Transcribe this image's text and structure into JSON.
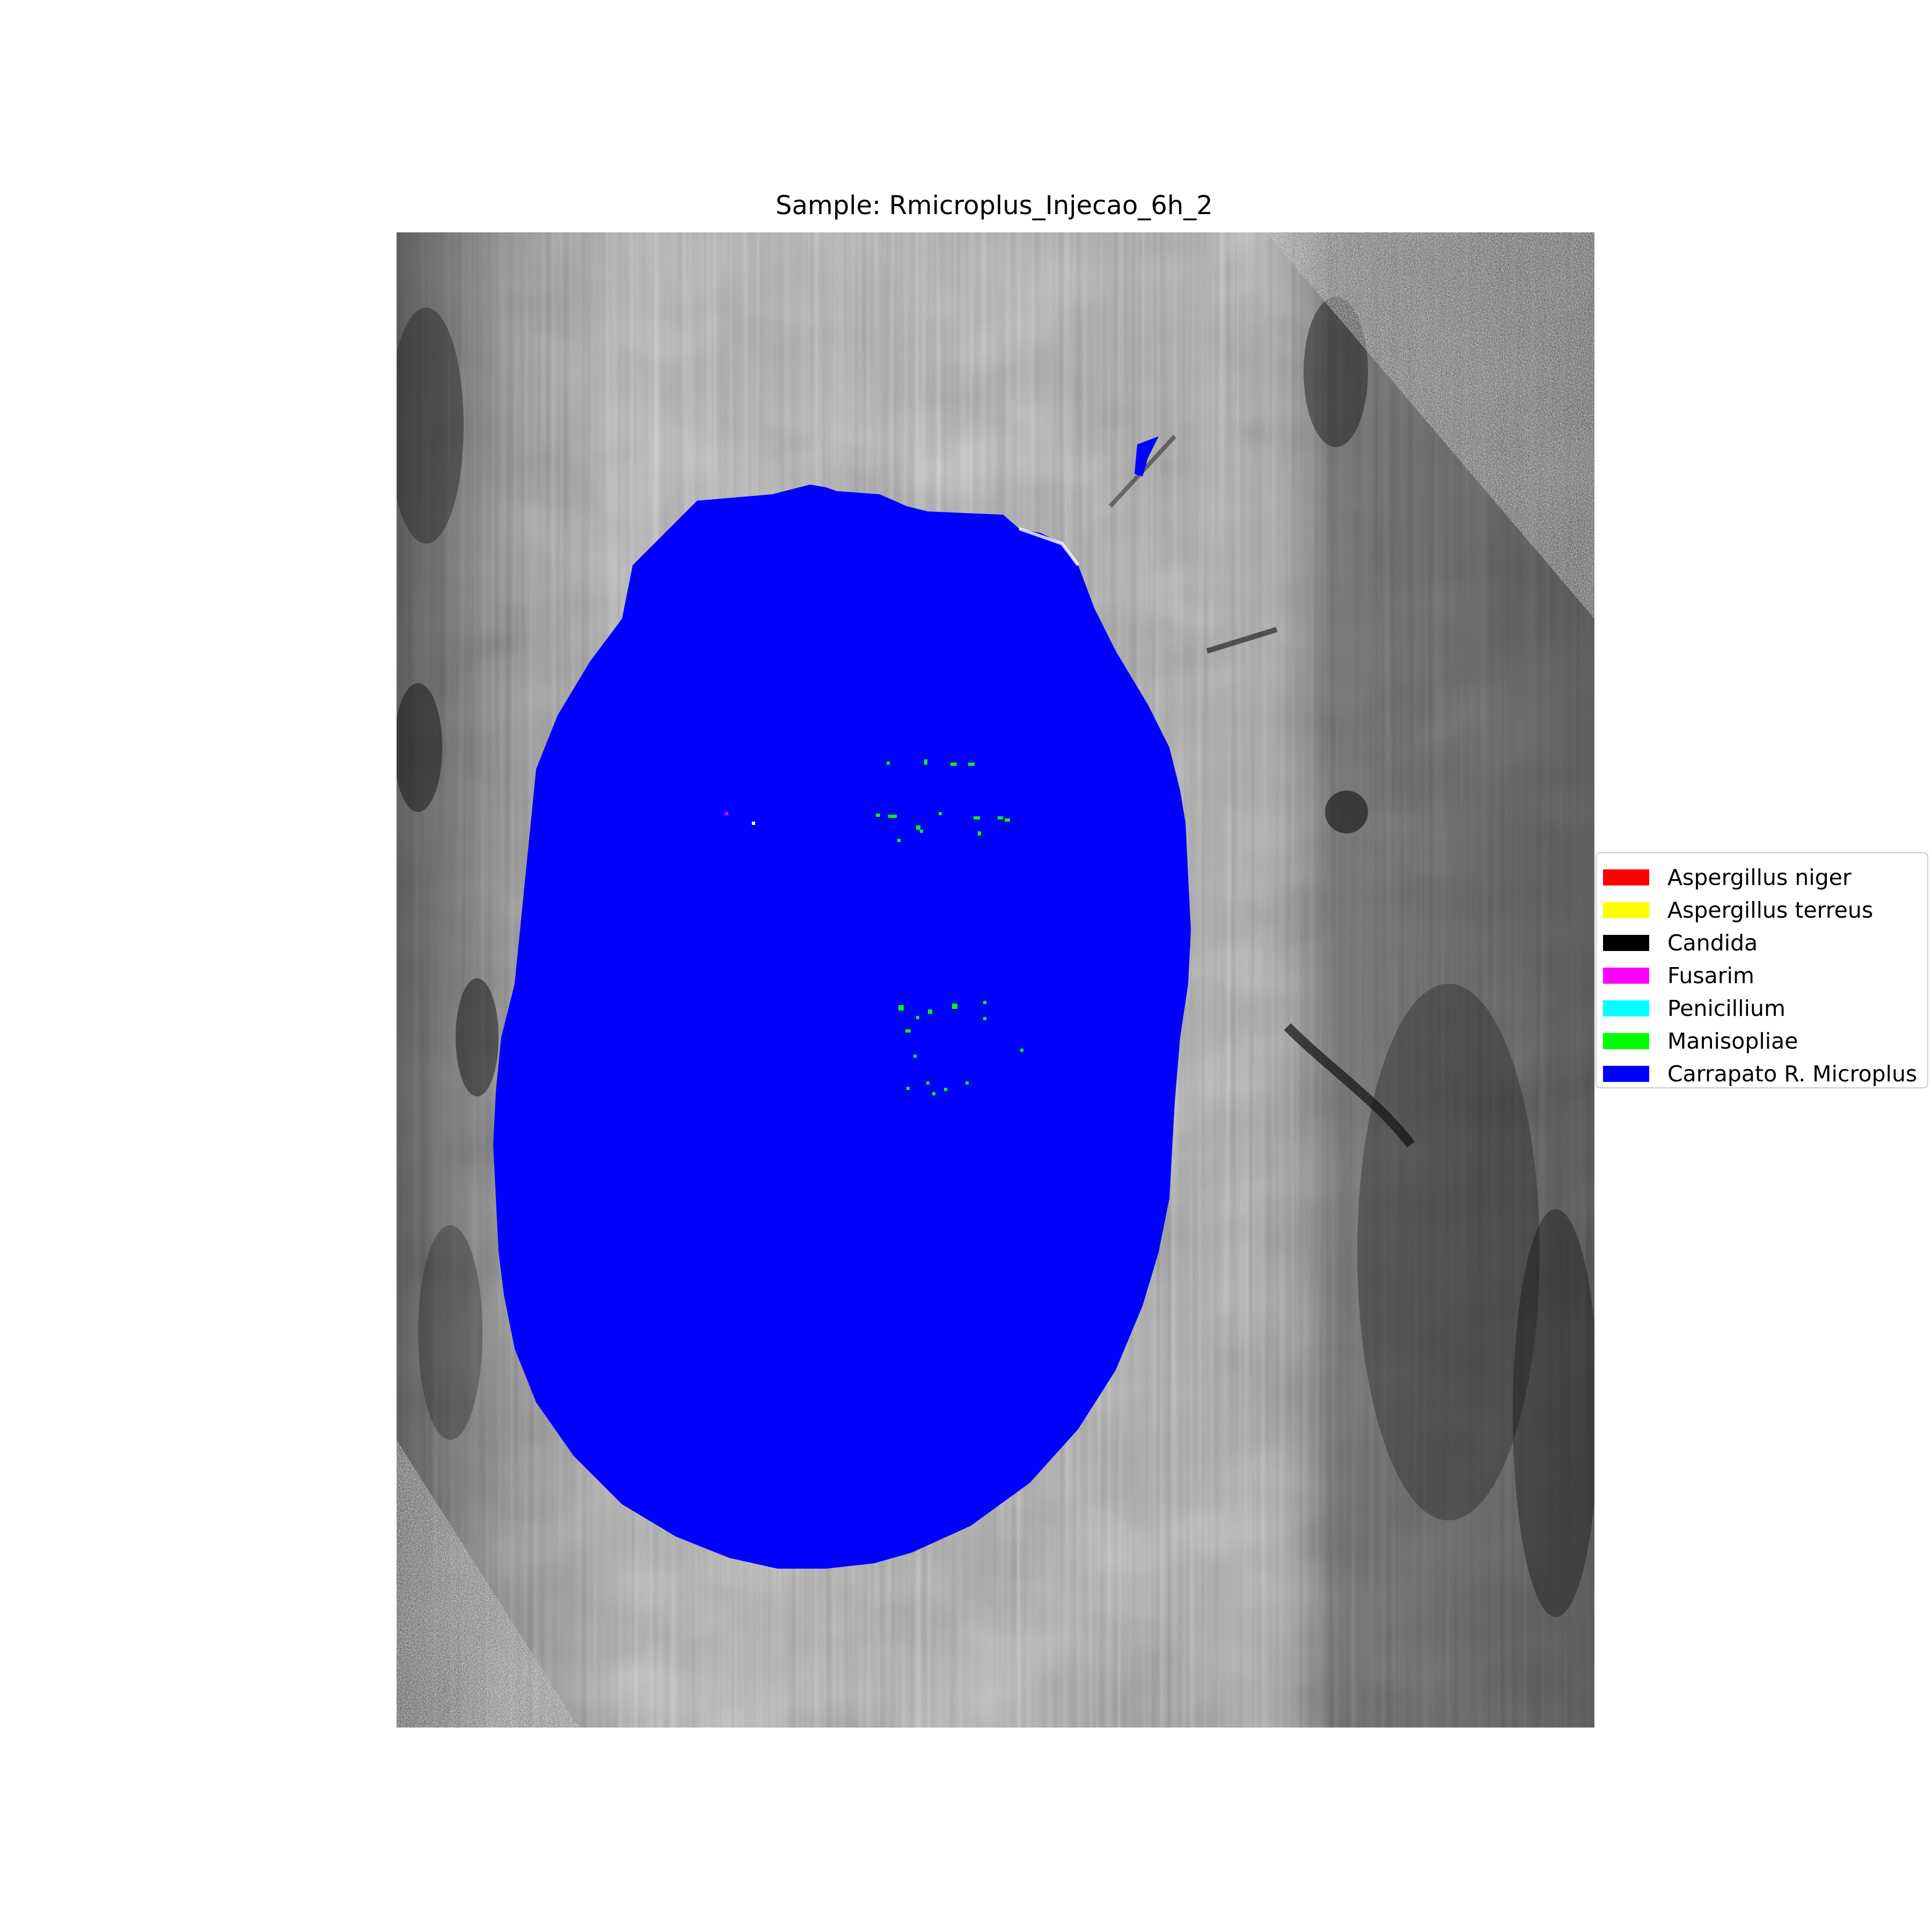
{
  "title": "Sample: Rmicroplus_Injecao_6h_2",
  "image_content": {
    "background": "grayscale hyperspectral scan with vertical striping",
    "overlay_color": "#0000ff",
    "overlay_class": "Carrapato R. Microplus",
    "speckle_color": "#00ff00"
  },
  "legend": {
    "items": [
      {
        "label": "Aspergillus niger",
        "color": "#ff0000"
      },
      {
        "label": "Aspergillus terreus",
        "color": "#ffff00"
      },
      {
        "label": "Candida",
        "color": "#000000"
      },
      {
        "label": "Fusarim",
        "color": "#ff00ff"
      },
      {
        "label": "Penicillium",
        "color": "#00ffff"
      },
      {
        "label": "Manisopliae",
        "color": "#00ff00"
      },
      {
        "label": "Carrapato R. Microplus",
        "color": "#0000ff"
      }
    ]
  }
}
